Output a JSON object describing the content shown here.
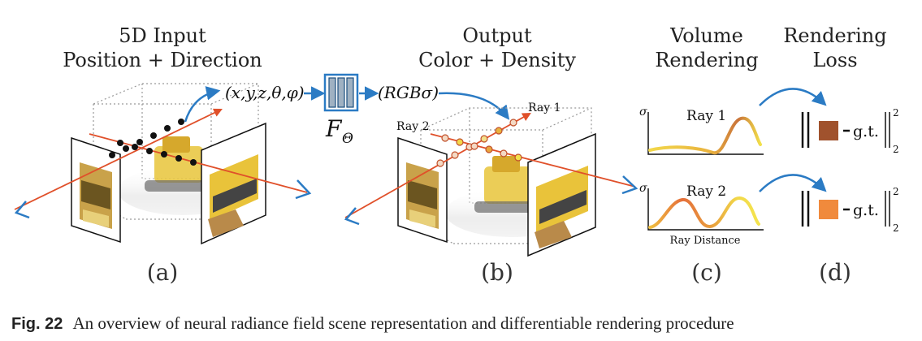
{
  "panel_a": {
    "title_line1": "5D Input",
    "title_line2": "Position + Direction",
    "input_tuple": "(x,y,z,θ,φ)",
    "label": "(a)"
  },
  "network": {
    "symbol": "F",
    "subscript": "Θ"
  },
  "panel_b": {
    "title_line1": "Output",
    "title_line2": "Color + Density",
    "output_tuple": "(RGBσ)",
    "ray1": "Ray 1",
    "ray2": "Ray 2",
    "label": "(b)"
  },
  "panel_c": {
    "title_line1": "Volume",
    "title_line2": "Rendering",
    "sigma": "σ",
    "ray1": "Ray 1",
    "ray2": "Ray 2",
    "x_axis": "Ray Distance",
    "label": "(c)"
  },
  "panel_d": {
    "title_line1": "Rendering",
    "title_line2": "Loss",
    "gt": "g.t.",
    "exp": "2",
    "sub": "2",
    "label": "(d)"
  },
  "caption": {
    "fig_label": "Fig. 22",
    "text": "An overview of neural radiance field scene representation and differentiable rendering procedure"
  },
  "colors": {
    "blue_arrow": "#2b7bc4",
    "red_ray": "#e0502a",
    "network_fill": "#9fb1c2",
    "swatch1": "#a0522d",
    "swatch2": "#f08a3c"
  }
}
